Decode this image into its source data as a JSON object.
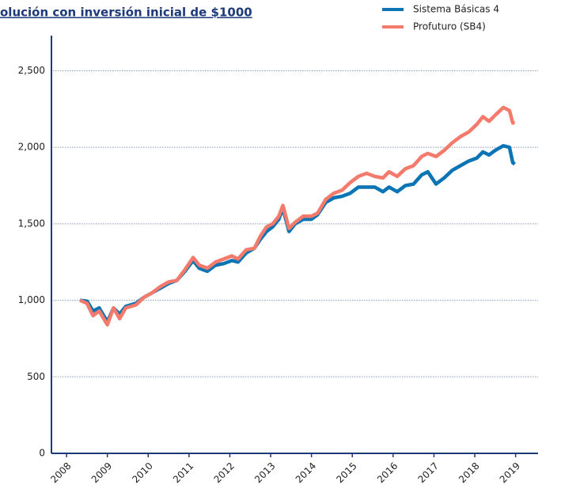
{
  "chart_data": {
    "type": "line",
    "title": "olución con inversión inicial de $1000",
    "x": [
      2008.33,
      2008.5,
      2008.65,
      2008.8,
      2009.0,
      2009.15,
      2009.3,
      2009.45,
      2009.7,
      2009.9,
      2010.1,
      2010.3,
      2010.5,
      2010.7,
      2010.9,
      2011.1,
      2011.25,
      2011.45,
      2011.65,
      2011.85,
      2012.05,
      2012.2,
      2012.4,
      2012.6,
      2012.75,
      2012.9,
      2013.05,
      2013.2,
      2013.3,
      2013.45,
      2013.6,
      2013.8,
      2014.0,
      2014.15,
      2014.35,
      2014.55,
      2014.75,
      2014.95,
      2015.15,
      2015.35,
      2015.55,
      2015.75,
      2015.9,
      2016.1,
      2016.3,
      2016.5,
      2016.7,
      2016.85,
      2017.05,
      2017.25,
      2017.45,
      2017.65,
      2017.85,
      2018.05,
      2018.2,
      2018.35,
      2018.5,
      2018.7,
      2018.85,
      2018.93,
      2018.98
    ],
    "series": [
      {
        "name": "Sistema Básicas 4",
        "color": "#0a74b4",
        "values": [
          1000,
          995,
          930,
          950,
          860,
          950,
          910,
          960,
          980,
          1020,
          1050,
          1080,
          1110,
          1130,
          1190,
          1260,
          1210,
          1190,
          1230,
          1240,
          1260,
          1250,
          1310,
          1340,
          1400,
          1450,
          1480,
          1530,
          1600,
          1450,
          1500,
          1530,
          1530,
          1560,
          1640,
          1670,
          1680,
          1700,
          1740,
          1740,
          1740,
          1710,
          1740,
          1710,
          1750,
          1760,
          1820,
          1840,
          1760,
          1800,
          1850,
          1880,
          1910,
          1930,
          1970,
          1950,
          1980,
          2010,
          2000,
          1900,
          1890
        ]
      },
      {
        "name": "Profuturo (SB4)",
        "color": "#f47a6b",
        "values": [
          1000,
          980,
          900,
          930,
          840,
          950,
          880,
          950,
          970,
          1020,
          1050,
          1090,
          1120,
          1130,
          1200,
          1280,
          1230,
          1210,
          1250,
          1270,
          1290,
          1270,
          1330,
          1340,
          1420,
          1480,
          1500,
          1550,
          1620,
          1470,
          1510,
          1550,
          1550,
          1570,
          1660,
          1700,
          1720,
          1770,
          1810,
          1830,
          1810,
          1800,
          1840,
          1810,
          1860,
          1880,
          1940,
          1960,
          1940,
          1980,
          2030,
          2070,
          2100,
          2150,
          2200,
          2170,
          2210,
          2260,
          2240,
          2160,
          2160
        ]
      }
    ],
    "xlim": [
      2007.63,
      2019.55
    ],
    "xticks": [
      2008,
      2009,
      2010,
      2011,
      2012,
      2013,
      2014,
      2015,
      2016,
      2017,
      2018,
      2019
    ],
    "ylim": [
      0,
      2730
    ],
    "yticks": [
      0,
      500,
      {
        "value": 1000,
        "label": "1,000"
      },
      {
        "value": 1500,
        "label": "1,500"
      },
      {
        "value": 2000,
        "label": "2,000"
      },
      {
        "value": 2500,
        "label": "2,500"
      }
    ],
    "grid": true
  }
}
